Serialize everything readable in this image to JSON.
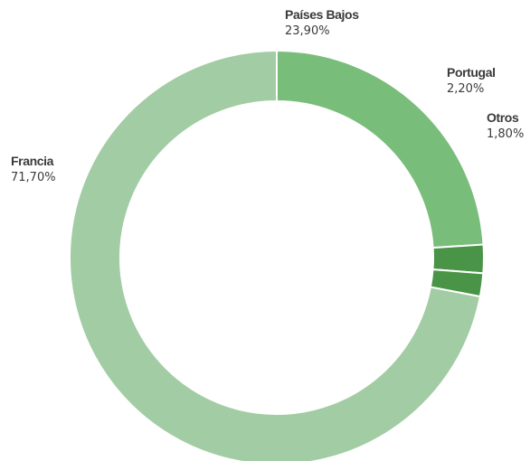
{
  "chart_data": {
    "type": "pie",
    "subtype": "donut",
    "title": "",
    "slices": [
      {
        "label": "Francia",
        "value": 71.7,
        "value_label": "71,70%",
        "color": "#a2cca3"
      },
      {
        "label": "Países Bajos",
        "value": 23.9,
        "value_label": "23,90%",
        "color": "#79bd7a"
      },
      {
        "label": "Portugal",
        "value": 2.2,
        "value_label": "2,20%",
        "color": "#4a9448"
      },
      {
        "label": "Otros",
        "value": 1.8,
        "value_label": "1,80%",
        "color": "#4a9448"
      }
    ],
    "slice_order_clockwise_from_top": [
      "Países Bajos",
      "Portugal",
      "Otros",
      "Francia"
    ],
    "legend": "none",
    "labels": "outside"
  }
}
